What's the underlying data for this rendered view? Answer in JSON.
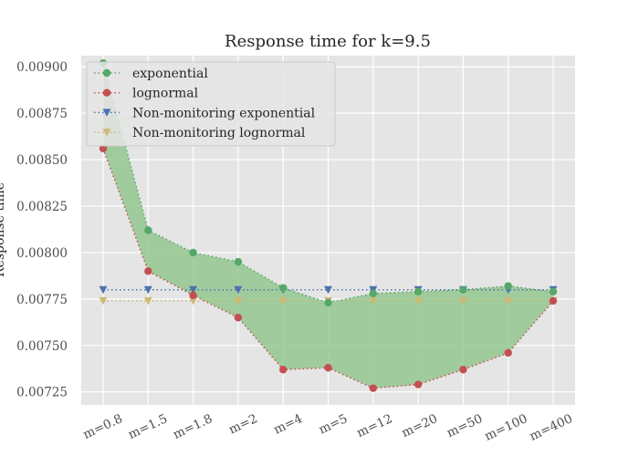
{
  "chart_data": {
    "type": "line",
    "title": "Response time for k=9.5",
    "ylabel": "Response time",
    "xlabel": "",
    "categories": [
      "m=0.8",
      "m=1.5",
      "m=1.8",
      "m=2",
      "m=4",
      "m=5",
      "m=12",
      "m=20",
      "m=50",
      "m=100",
      "m=400"
    ],
    "ylim": [
      0.00718,
      0.00906
    ],
    "yticks": [
      "0.00725",
      "0.00750",
      "0.00775",
      "0.00800",
      "0.00825",
      "0.00850",
      "0.00875",
      "0.00900"
    ],
    "grid": true,
    "legend_position": "upper-left",
    "fill_between": {
      "upper": "exponential",
      "lower": "lognormal",
      "color": "#8fc48a"
    },
    "series": [
      {
        "name": "exponential",
        "marker": "circle",
        "color": "#55a868",
        "values": [
          0.00902,
          0.00812,
          0.008,
          0.00795,
          0.00781,
          0.00773,
          0.00778,
          0.00779,
          0.0078,
          0.00782,
          0.00779
        ]
      },
      {
        "name": "lognormal",
        "marker": "circle",
        "color": "#c44e52",
        "values": [
          0.00856,
          0.0079,
          0.00777,
          0.00765,
          0.00737,
          0.00738,
          0.00727,
          0.00729,
          0.00737,
          0.00746,
          0.00774
        ]
      },
      {
        "name": "Non-monitoring exponential",
        "marker": "triangle-down",
        "color": "#4c72b0",
        "values": [
          0.0078,
          0.0078,
          0.0078,
          0.0078,
          0.0078,
          0.0078,
          0.0078,
          0.0078,
          0.0078,
          0.0078,
          0.0078
        ]
      },
      {
        "name": "Non-monitoring lognormal",
        "marker": "triangle-down",
        "color": "#ccb974",
        "values": [
          0.00774,
          0.00774,
          0.00774,
          0.00774,
          0.00774,
          0.00774,
          0.00774,
          0.00774,
          0.00774,
          0.00774,
          0.00774
        ]
      }
    ]
  }
}
